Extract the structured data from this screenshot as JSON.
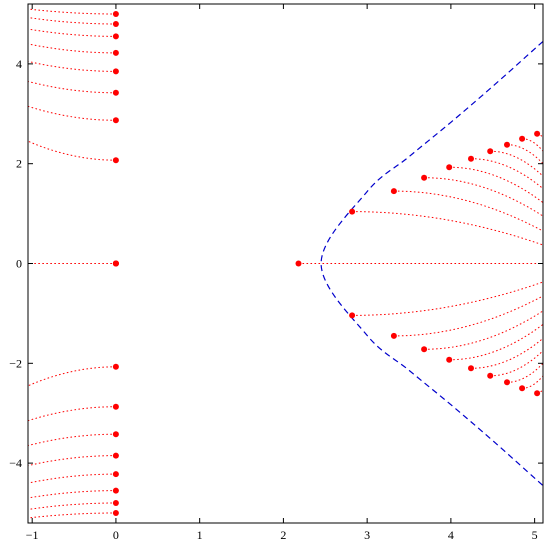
{
  "chart_data": {
    "type": "scatter",
    "title": "",
    "xlabel": "",
    "ylabel": "",
    "xlim": [
      -1.05,
      5.1
    ],
    "ylim": [
      -5.2,
      5.2
    ],
    "x_ticks": [
      -1,
      0,
      1,
      2,
      3,
      4,
      5
    ],
    "y_ticks": [
      -4,
      -2,
      0,
      2,
      4
    ],
    "x_tick_labels": [
      "−1",
      "0",
      "1",
      "2",
      "3",
      "4",
      "5"
    ],
    "y_tick_labels": [
      "−4",
      "−2",
      "0",
      "2",
      "4"
    ],
    "grid": false,
    "colors": {
      "points": "#ff0000",
      "trajectories": "#ff0000",
      "boundary": "#0000cc",
      "frame": "#000000"
    },
    "series": [
      {
        "kind": "points",
        "x": [
          0,
          0,
          0,
          0,
          0,
          0,
          0,
          0,
          0,
          0,
          0,
          0,
          0,
          0,
          0,
          0,
          0,
          0,
          0,
          0,
          2.18,
          2.82,
          3.32,
          3.68,
          3.98,
          4.24,
          4.47,
          4.67,
          4.85,
          5.03,
          2.82,
          3.32,
          3.68,
          3.98,
          4.24,
          4.47,
          4.67,
          4.85,
          5.03
        ],
        "y": [
          5.0,
          4.8,
          4.55,
          4.22,
          3.85,
          3.42,
          2.87,
          2.07,
          -2.07,
          -2.87,
          -3.42,
          -3.85,
          -4.22,
          -4.55,
          -4.8,
          -5.0,
          0,
          0,
          0,
          0,
          0,
          1.04,
          1.45,
          1.72,
          1.93,
          2.1,
          2.25,
          2.38,
          2.5,
          2.6,
          -1.04,
          -1.45,
          -1.72,
          -1.93,
          -2.1,
          -2.25,
          -2.38,
          -2.5,
          -2.6
        ]
      },
      {
        "kind": "dotted-trajectories",
        "curves": [
          {
            "x": [
              0,
              -1.05
            ],
            "y": [
              0,
              0
            ]
          },
          {
            "x": [
              0,
              -1.05
            ],
            "y": [
              2.07,
              2.45
            ]
          },
          {
            "x": [
              0,
              -1.05
            ],
            "y": [
              2.87,
              3.15
            ]
          },
          {
            "x": [
              0,
              -1.05
            ],
            "y": [
              3.42,
              3.65
            ]
          },
          {
            "x": [
              0,
              -1.05
            ],
            "y": [
              3.85,
              4.05
            ]
          },
          {
            "x": [
              0,
              -1.05
            ],
            "y": [
              4.22,
              4.4
            ]
          },
          {
            "x": [
              0,
              -1.05
            ],
            "y": [
              4.55,
              4.7
            ]
          },
          {
            "x": [
              0,
              -1.05
            ],
            "y": [
              4.8,
              4.93
            ]
          },
          {
            "x": [
              0,
              -1.05
            ],
            "y": [
              5.0,
              5.1
            ]
          },
          {
            "x": [
              0,
              -1.05
            ],
            "y": [
              -2.07,
              -2.45
            ]
          },
          {
            "x": [
              0,
              -1.05
            ],
            "y": [
              -2.87,
              -3.15
            ]
          },
          {
            "x": [
              0,
              -1.05
            ],
            "y": [
              -3.42,
              -3.65
            ]
          },
          {
            "x": [
              0,
              -1.05
            ],
            "y": [
              -3.85,
              -4.05
            ]
          },
          {
            "x": [
              0,
              -1.05
            ],
            "y": [
              -4.22,
              -4.4
            ]
          },
          {
            "x": [
              0,
              -1.05
            ],
            "y": [
              -4.55,
              -4.7
            ]
          },
          {
            "x": [
              0,
              -1.05
            ],
            "y": [
              -4.8,
              -4.93
            ]
          },
          {
            "x": [
              0,
              -1.05
            ],
            "y": [
              -5.0,
              -5.1
            ]
          },
          {
            "x": [
              2.18,
              5.1
            ],
            "y": [
              0,
              0
            ]
          },
          {
            "x": [
              2.82,
              5.1
            ],
            "y": [
              1.04,
              0.37
            ]
          },
          {
            "x": [
              3.32,
              5.1
            ],
            "y": [
              1.45,
              0.65
            ]
          },
          {
            "x": [
              3.68,
              5.1
            ],
            "y": [
              1.72,
              0.95
            ]
          },
          {
            "x": [
              3.98,
              5.1
            ],
            "y": [
              1.93,
              1.22
            ]
          },
          {
            "x": [
              4.24,
              5.1
            ],
            "y": [
              2.1,
              1.5
            ]
          },
          {
            "x": [
              4.47,
              5.1
            ],
            "y": [
              2.25,
              1.75
            ]
          },
          {
            "x": [
              4.67,
              5.1
            ],
            "y": [
              2.38,
              2.0
            ]
          },
          {
            "x": [
              4.85,
              5.1
            ],
            "y": [
              2.5,
              2.25
            ]
          },
          {
            "x": [
              5.03,
              5.1
            ],
            "y": [
              2.6,
              2.52
            ]
          },
          {
            "x": [
              2.82,
              5.1
            ],
            "y": [
              -1.04,
              -0.37
            ]
          },
          {
            "x": [
              3.32,
              5.1
            ],
            "y": [
              -1.45,
              -0.65
            ]
          },
          {
            "x": [
              3.68,
              5.1
            ],
            "y": [
              -1.72,
              -0.95
            ]
          },
          {
            "x": [
              3.98,
              5.1
            ],
            "y": [
              -1.93,
              -1.22
            ]
          },
          {
            "x": [
              4.24,
              5.1
            ],
            "y": [
              -2.1,
              -1.5
            ]
          },
          {
            "x": [
              4.47,
              5.1
            ],
            "y": [
              -2.25,
              -1.75
            ]
          },
          {
            "x": [
              4.67,
              5.1
            ],
            "y": [
              -2.38,
              -2.0
            ]
          },
          {
            "x": [
              4.85,
              5.1
            ],
            "y": [
              -2.5,
              -2.25
            ]
          },
          {
            "x": [
              5.03,
              5.1
            ],
            "y": [
              -2.6,
              -2.52
            ]
          }
        ]
      },
      {
        "kind": "dashed-boundary",
        "vertex": [
          2.45,
          0
        ],
        "x_at": [
          2.45,
          3.0,
          3.5,
          4.0,
          4.5,
          5.1
        ],
        "y_abs": [
          0,
          1.44,
          2.14,
          2.83,
          3.55,
          4.45
        ]
      }
    ]
  }
}
